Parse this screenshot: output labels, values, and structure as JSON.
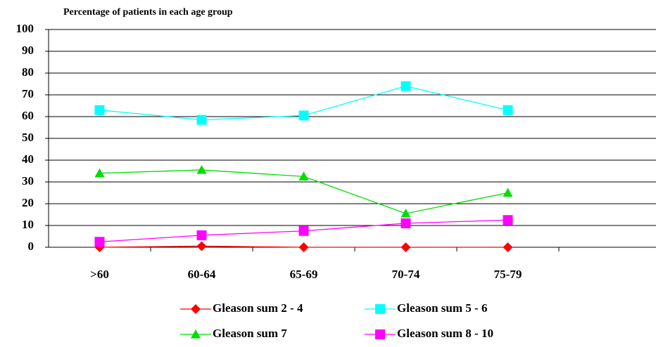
{
  "chart_data": {
    "type": "line",
    "title": "Percentage of patients in each age group",
    "categories": [
      ">60",
      "60-64",
      "65-69",
      "70-74",
      "75-79",
      null
    ],
    "series": [
      {
        "name": "Gleason sum 2 - 4",
        "color": "#ff0000",
        "marker": "diamond",
        "values": [
          0,
          0.5,
          0,
          0,
          0,
          null
        ]
      },
      {
        "name": "Gleason sum 5 - 6",
        "color": "#00ffff",
        "marker": "square",
        "values": [
          63,
          58.5,
          60.5,
          74,
          63,
          null
        ]
      },
      {
        "name": "Gleason sum 7",
        "color": "#00dd00",
        "marker": "triangle",
        "values": [
          34,
          35.5,
          32.5,
          15.5,
          25,
          null
        ]
      },
      {
        "name": "Gleason sum 8 - 10",
        "color": "#ff00ff",
        "marker": "square",
        "values": [
          2.5,
          5.5,
          7.5,
          11,
          12.5,
          null
        ]
      }
    ],
    "ylim": [
      0,
      100
    ],
    "yticks": [
      0,
      10,
      20,
      30,
      40,
      50,
      60,
      70,
      80,
      90,
      100
    ],
    "grid": true,
    "legend": "bottom"
  }
}
